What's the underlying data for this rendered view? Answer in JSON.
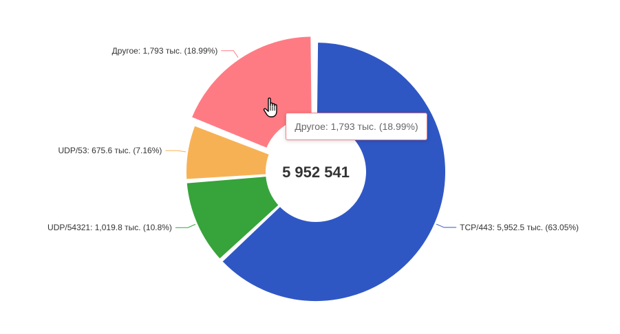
{
  "colors": {
    "tcp": "#2f57c4",
    "udp54321": "#37a33b",
    "udp53": "#f7b155",
    "other": "#ff7b84",
    "label_text": "#333333",
    "center_text": "#333333"
  },
  "center_total": "5 952 541",
  "tooltip": {
    "text": "Другое: 1,793 тыс. (18.99%)"
  },
  "cursor_icon": "hand-pointer-icon",
  "chart_data": {
    "type": "pie",
    "variant": "donut",
    "center_label": "5 952 541",
    "highlighted": "Другое",
    "slices": [
      {
        "name": "TCP/443",
        "value": 5952.5,
        "percent": 63.05,
        "label": "TCP/443: 5,952.5 тыс. (63.05%)",
        "color": "#2f57c4"
      },
      {
        "name": "UDP/54321",
        "value": 1019.8,
        "percent": 10.8,
        "label": "UDP/54321: 1,019.8 тыс. (10.8%)",
        "color": "#37a33b"
      },
      {
        "name": "UDP/53",
        "value": 675.6,
        "percent": 7.16,
        "label": "UDP/53: 675.6 тыс. (7.16%)",
        "color": "#f7b155"
      },
      {
        "name": "Другое",
        "value": 1793,
        "percent": 18.99,
        "label": "Другое: 1,793 тыс. (18.99%)",
        "color": "#ff7b84"
      }
    ]
  }
}
